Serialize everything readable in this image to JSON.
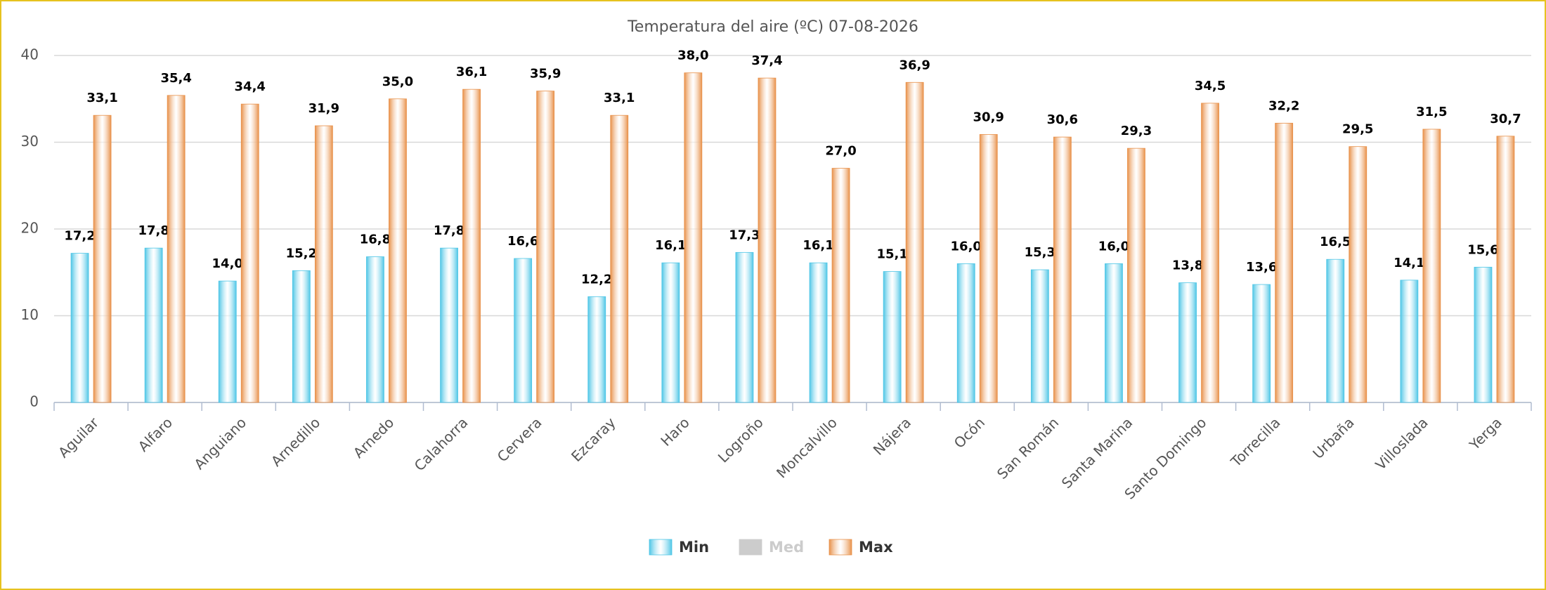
{
  "chart_data": {
    "type": "bar",
    "title": "Temperatura del aire (ºC) 07-08-2026",
    "categories": [
      "Aguilar",
      "Alfaro",
      "Anguiano",
      "Arnedillo",
      "Arnedo",
      "Calahorra",
      "Cervera",
      "Ezcaray",
      "Haro",
      "Logroño",
      "Moncalvillo",
      "Nájera",
      "Ocón",
      "San Román",
      "Santa Marina",
      "Santo Domingo",
      "Torrecilla",
      "Urbaña",
      "Villoslada",
      "Yerga"
    ],
    "series": [
      {
        "name": "Min",
        "color": "#4fc6e6",
        "values": [
          17.2,
          17.8,
          14.0,
          15.2,
          16.8,
          17.8,
          16.6,
          12.2,
          16.1,
          17.3,
          16.1,
          15.1,
          16.0,
          15.3,
          16.0,
          13.8,
          13.6,
          16.5,
          14.1,
          15.6
        ],
        "value_labels": [
          "17,2",
          "17,8",
          "14,0",
          "15,2",
          "16,8",
          "17,8",
          "16,6",
          "12,2",
          "16,1",
          "17,3",
          "16,1",
          "15,1",
          "16,0",
          "15,3",
          "16,0",
          "13,8",
          "13,6",
          "16,5",
          "14,1",
          "15,6"
        ]
      },
      {
        "name": "Med",
        "color": "#cccccc",
        "hidden": true,
        "values": [
          null,
          null,
          null,
          null,
          null,
          null,
          null,
          null,
          null,
          null,
          null,
          null,
          null,
          null,
          null,
          null,
          null,
          null,
          null,
          null
        ]
      },
      {
        "name": "Max",
        "color": "#e8914a",
        "values": [
          33.1,
          35.4,
          34.4,
          31.9,
          35.0,
          36.1,
          35.9,
          33.1,
          38.0,
          37.4,
          27.0,
          36.9,
          30.9,
          30.6,
          29.3,
          34.5,
          32.2,
          29.5,
          31.5,
          30.7
        ],
        "value_labels": [
          "33,1",
          "35,4",
          "34,4",
          "31,9",
          "35,0",
          "36,1",
          "35,9",
          "33,1",
          "38,0",
          "37,4",
          "27,0",
          "36,9",
          "30,9",
          "30,6",
          "29,3",
          "34,5",
          "32,2",
          "29,5",
          "31,5",
          "30,7"
        ]
      }
    ],
    "ylim": [
      0,
      40
    ],
    "yticks": [
      0,
      10,
      20,
      30,
      40
    ],
    "grid": true,
    "legend": "bottom"
  }
}
